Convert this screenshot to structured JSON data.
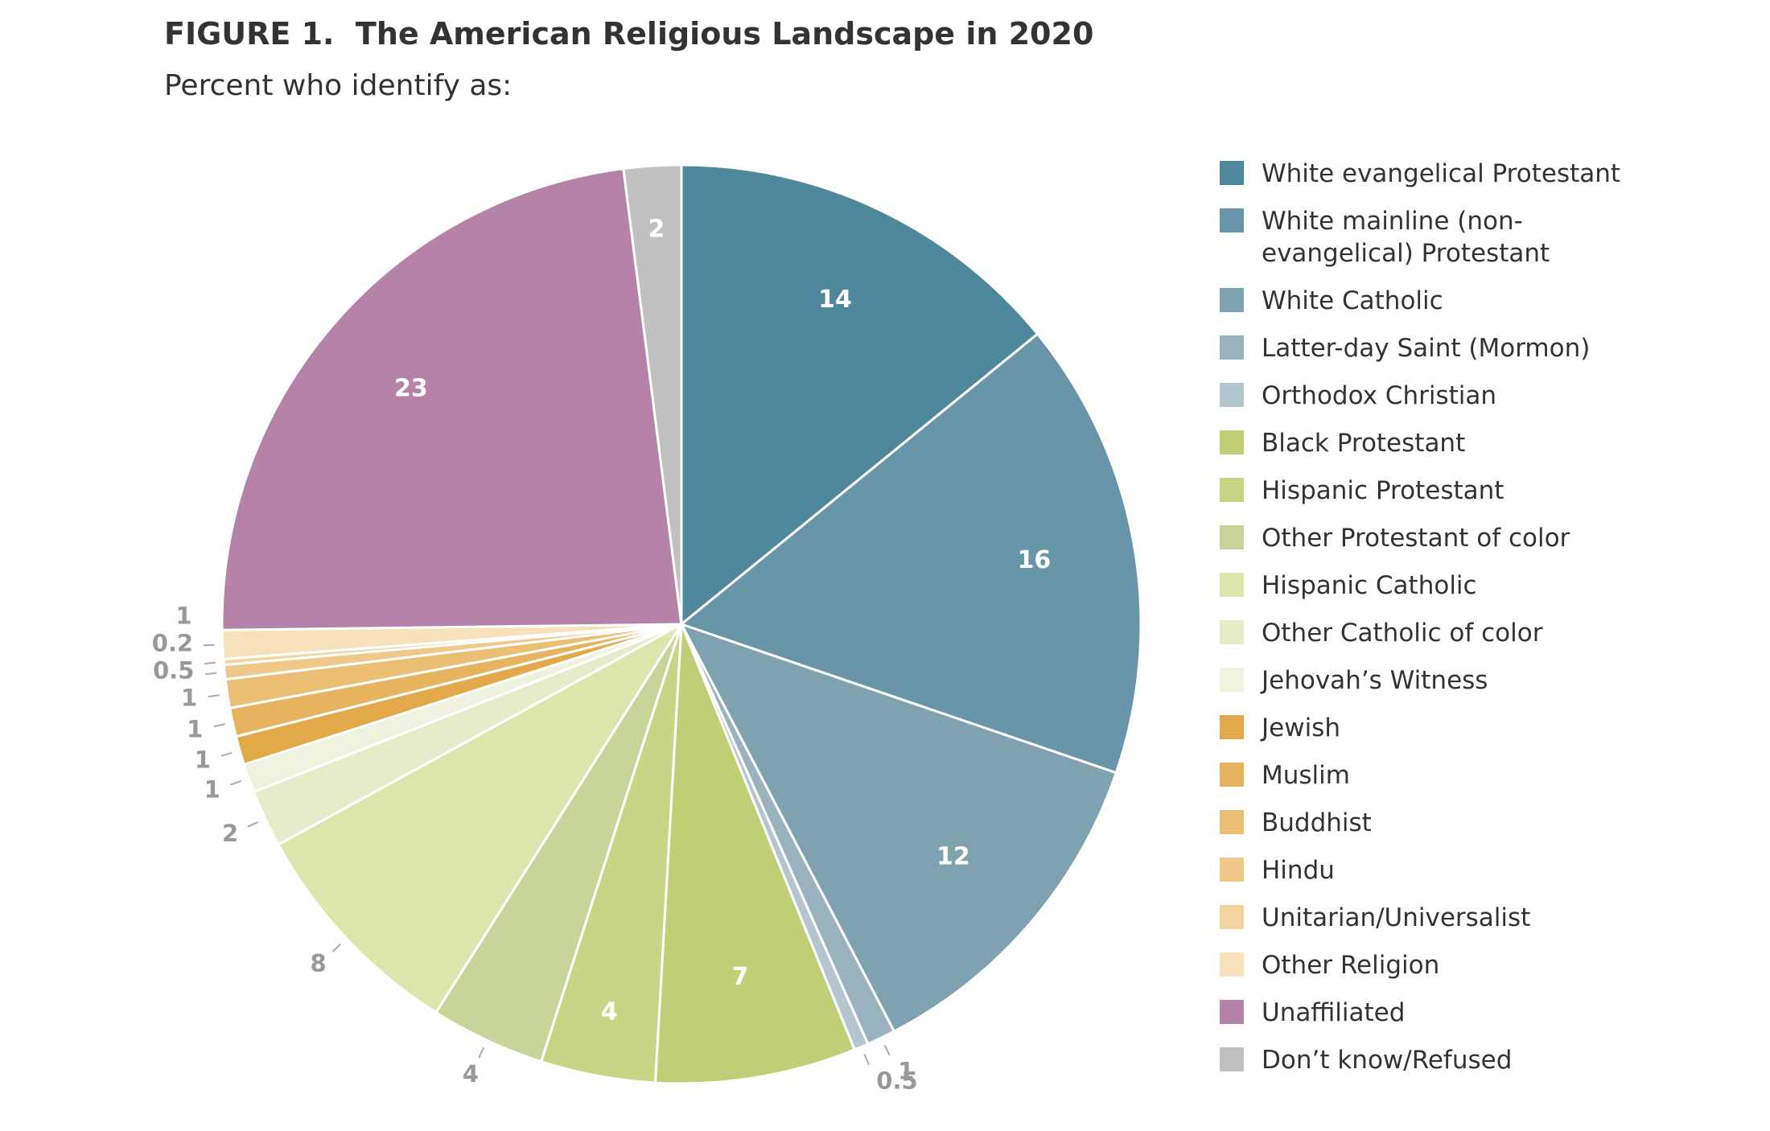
{
  "chart_data": {
    "type": "pie",
    "title": "FIGURE 1.  The American Religious Landscape in 2020",
    "subtitle": "Percent who identify as:",
    "categories": [
      "White evangelical Protestant",
      "White mainline (non-evangelical) Protestant",
      "White Catholic",
      "Latter-day Saint (Mormon)",
      "Orthodox Christian",
      "Black Protestant",
      "Hispanic Protestant",
      "Other Protestant of color",
      "Hispanic Catholic",
      "Other Catholic of color",
      "Jehovah’s Witness",
      "Jewish",
      "Muslim",
      "Buddhist",
      "Hindu",
      "Unitarian/Universalist",
      "Other Religion",
      "Unaffiliated",
      "Don’t know/Refused"
    ],
    "values": [
      14,
      16,
      12,
      1,
      0.5,
      7,
      4,
      4,
      8,
      2,
      1,
      1,
      1,
      1,
      0.5,
      0.2,
      1,
      23,
      2
    ],
    "colors": [
      "#4f879c",
      "#6895a8",
      "#7fa2b1",
      "#98b2be",
      "#b3c6cf",
      "#bfcf76",
      "#c8d585",
      "#c7d59a",
      "#dde5ad",
      "#e6ecc8",
      "#eef2df",
      "#e1a94a",
      "#e6b35f",
      "#ebbf73",
      "#efc88a",
      "#f2d49f",
      "#f6e1bb",
      "#b583a8",
      "#c0c0c0"
    ],
    "legend": "right"
  }
}
